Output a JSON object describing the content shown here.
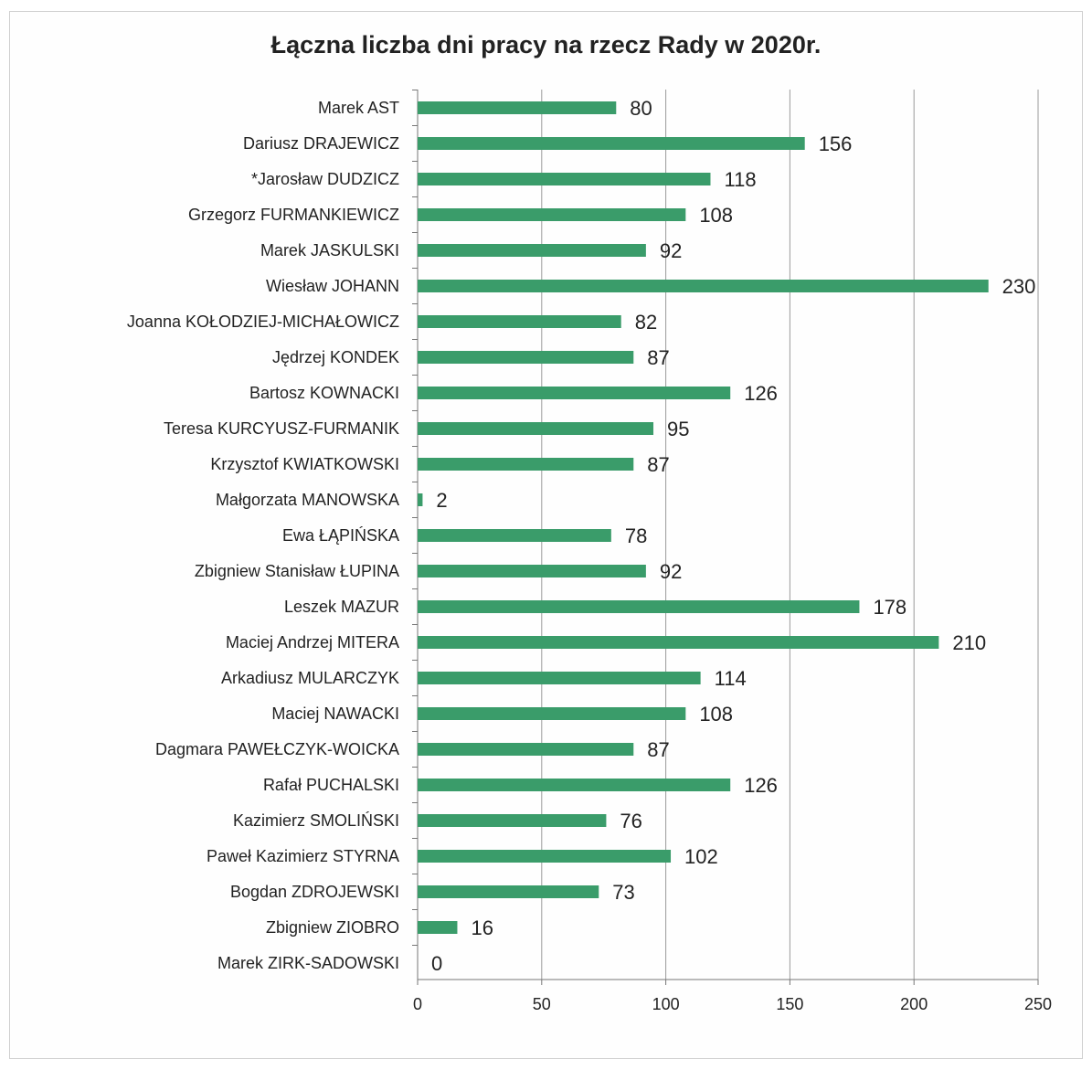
{
  "chart_data": {
    "type": "bar",
    "orientation": "horizontal",
    "title": "Łączna liczba dni pracy na rzecz Rady w 2020r.",
    "xlabel": "",
    "ylabel": "",
    "xlim": [
      0,
      250
    ],
    "x_ticks": [
      "0",
      "50",
      "100",
      "150",
      "200",
      "250"
    ],
    "grid": true,
    "legend": "none",
    "bar_color": "#3a9c6a",
    "categories": [
      "Marek AST",
      "Dariusz DRAJEWICZ",
      "*Jarosław DUDZICZ",
      "Grzegorz FURMANKIEWICZ",
      "Marek JASKULSKI",
      "Wiesław JOHANN",
      "Joanna KOŁODZIEJ-MICHAŁOWICZ",
      "Jędrzej KONDEK",
      "Bartosz KOWNACKI",
      "Teresa KURCYUSZ-FURMANIK",
      "Krzysztof KWIATKOWSKI",
      "Małgorzata MANOWSKA",
      "Ewa ŁĄPIŃSKA",
      "Zbigniew Stanisław ŁUPINA",
      "Leszek MAZUR",
      "Maciej Andrzej MITERA",
      "Arkadiusz MULARCZYK",
      "Maciej NAWACKI",
      "Dagmara PAWEŁCZYK-WOICKA",
      "Rafał PUCHALSKI",
      "Kazimierz SMOLIŃSKI",
      "Paweł Kazimierz STYRNA",
      "Bogdan ZDROJEWSKI",
      "Zbigniew ZIOBRO",
      "Marek ZIRK-SADOWSKI"
    ],
    "values": [
      80,
      156,
      118,
      108,
      92,
      230,
      82,
      87,
      126,
      95,
      87,
      2,
      78,
      92,
      178,
      210,
      114,
      108,
      87,
      126,
      76,
      102,
      73,
      16,
      0
    ]
  }
}
